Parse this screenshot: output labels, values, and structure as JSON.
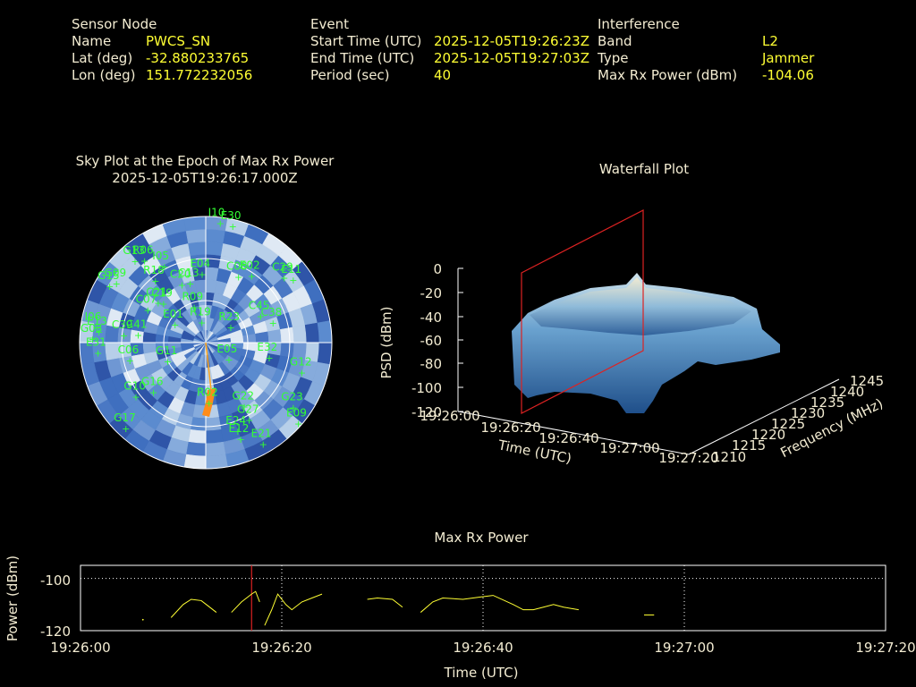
{
  "header": {
    "sensor": {
      "title": "Sensor Node",
      "name_label": "Name",
      "name_value": "PWCS_SN",
      "lat_label": "Lat (deg)",
      "lat_value": "-32.880233765",
      "lon_label": "Lon (deg)",
      "lon_value": "151.772232056"
    },
    "event": {
      "title": "Event",
      "start_label": "Start Time (UTC)",
      "start_value": "2025-12-05T19:26:23Z",
      "end_label": "End Time (UTC)",
      "end_value": "2025-12-05T19:27:03Z",
      "period_label": "Period (sec)",
      "period_value": "40"
    },
    "interference": {
      "title": "Interference",
      "band_label": "Band",
      "band_value": "L2",
      "type_label": "Type",
      "type_value": "Jammer",
      "power_label": "Max Rx Power (dBm)",
      "power_value": "-104.06"
    }
  },
  "sky_plot": {
    "title": "Sky Plot at the Epoch of Max Rx Power",
    "epoch": "2025-12-05T19:26:17.000Z",
    "satellites": [
      {
        "id": "G13",
        "az": -40,
        "el": 10
      },
      {
        "id": "R06",
        "az": -36,
        "el": 14
      },
      {
        "id": "I10",
        "az": 6,
        "el": 1
      },
      {
        "id": "E30",
        "az": 12,
        "el": 2
      },
      {
        "id": "G15",
        "az": -58,
        "el": 8
      },
      {
        "id": "G09",
        "az": -55,
        "el": 11
      },
      {
        "id": "R18",
        "az": -38,
        "el": 30
      },
      {
        "id": "I05",
        "az": -28,
        "el": 25
      },
      {
        "id": "C20",
        "az": -22,
        "el": 42
      },
      {
        "id": "C13",
        "az": -15,
        "el": 43
      },
      {
        "id": "E04",
        "az": -4,
        "el": 38
      },
      {
        "id": "C08",
        "az": 24,
        "el": 35
      },
      {
        "id": "E02",
        "az": 32,
        "el": 30
      },
      {
        "id": "C29",
        "az": 48,
        "el": 16
      },
      {
        "id": "E11",
        "az": 52,
        "el": 12
      },
      {
        "id": "C07",
        "az": -58,
        "el": 40
      },
      {
        "id": "C21",
        "az": -48,
        "el": 43
      },
      {
        "id": "C19",
        "az": -45,
        "el": 46
      },
      {
        "id": "R09",
        "az": -18,
        "el": 60
      },
      {
        "id": "E01",
        "az": -55,
        "el": 62
      },
      {
        "id": "I06",
        "az": -80,
        "el": 10
      },
      {
        "id": "G03",
        "az": -86,
        "el": 8
      },
      {
        "id": "E13",
        "az": -82,
        "el": 12
      },
      {
        "id": "E31",
        "az": -93,
        "el": 12
      },
      {
        "id": "C39",
        "az": -82,
        "el": 30
      },
      {
        "id": "C41",
        "az": -80,
        "el": 40
      },
      {
        "id": "R19",
        "az": -12,
        "el": 72
      },
      {
        "id": "R23",
        "az": 50,
        "el": 68
      },
      {
        "id": "C45",
        "az": 60,
        "el": 46
      },
      {
        "id": "C38",
        "az": 70,
        "el": 40
      },
      {
        "id": "E05",
        "az": 120,
        "el": 72
      },
      {
        "id": "G11",
        "az": -110,
        "el": 60
      },
      {
        "id": "C06",
        "az": -100,
        "el": 34
      },
      {
        "id": "G16",
        "az": -130,
        "el": 40
      },
      {
        "id": "G10",
        "az": -125,
        "el": 28
      },
      {
        "id": "G17",
        "az": -135,
        "el": 8
      },
      {
        "id": "R02",
        "az": 178,
        "el": 50
      },
      {
        "id": "G22",
        "az": 148,
        "el": 40
      },
      {
        "id": "E24",
        "az": 160,
        "el": 26
      },
      {
        "id": "G27",
        "az": 150,
        "el": 30
      },
      {
        "id": "E12",
        "az": 160,
        "el": 20
      },
      {
        "id": "G12",
        "az": 105,
        "el": 20
      },
      {
        "id": "E32",
        "az": 100,
        "el": 45
      },
      {
        "id": "E21",
        "az": 150,
        "el": 10
      },
      {
        "id": "G23",
        "az": 125,
        "el": 15
      },
      {
        "id": "E09",
        "az": 130,
        "el": 5
      }
    ]
  },
  "waterfall": {
    "title": "Waterfall Plot",
    "zlabel": "PSD (dBm)",
    "xlabel": "Time (UTC)",
    "ylabel": "Frequency (MHz)",
    "z_ticks": [
      "0",
      "-20",
      "-40",
      "-60",
      "-80",
      "-100",
      "-120"
    ],
    "t_ticks": [
      "19:26:00",
      "19:26:20",
      "19:26:40",
      "19:27:00",
      "19:27:20"
    ],
    "f_ticks": [
      "1210",
      "1215",
      "1220",
      "1225",
      "1230",
      "1235",
      "1240",
      "1245"
    ]
  },
  "max_rx": {
    "title": "Max Rx Power",
    "ylabel": "Power (dBm)",
    "xlabel": "Time (UTC)",
    "y_ticks": [
      "-100",
      "-120"
    ],
    "x_ticks": [
      "19:26:00",
      "19:26:20",
      "19:26:40",
      "19:27:00",
      "19:27:20"
    ]
  },
  "chart_data": {
    "type": "line",
    "title": "Max Rx Power",
    "xlabel": "Time (UTC)",
    "ylabel": "Power (dBm)",
    "ylim": [
      -120,
      -95
    ],
    "xlim_sec": [
      0,
      80
    ],
    "x_origin": "19:26:00",
    "marker_sec": 17,
    "color": "#ffff33",
    "segments": [
      [
        [
          6.2,
          -115.8
        ]
      ],
      [
        [
          9.0,
          -115
        ],
        [
          10.2,
          -110
        ],
        [
          11.0,
          -108
        ],
        [
          12.0,
          -108.5
        ],
        [
          12.5,
          -110
        ],
        [
          13.5,
          -113
        ]
      ],
      [
        [
          15.0,
          -113
        ],
        [
          16.0,
          -109
        ],
        [
          17.0,
          -106
        ],
        [
          17.4,
          -105
        ],
        [
          17.8,
          -109
        ]
      ],
      [
        [
          18.3,
          -118
        ],
        [
          19.0,
          -112
        ],
        [
          19.6,
          -106
        ],
        [
          20.4,
          -110
        ],
        [
          21.0,
          -112
        ],
        [
          22.0,
          -109
        ],
        [
          23.0,
          -107.5
        ],
        [
          24.0,
          -106
        ]
      ],
      [
        [
          28.5,
          -108
        ],
        [
          29.5,
          -107.5
        ],
        [
          31.0,
          -108
        ],
        [
          32.0,
          -111
        ]
      ],
      [
        [
          33.8,
          -113
        ],
        [
          35.0,
          -109
        ],
        [
          36.0,
          -107.5
        ],
        [
          38.0,
          -108
        ],
        [
          40.0,
          -107
        ],
        [
          41.0,
          -106.5
        ],
        [
          43.0,
          -110
        ],
        [
          44.0,
          -112
        ],
        [
          45.0,
          -112
        ],
        [
          46.0,
          -111
        ],
        [
          47.0,
          -110
        ],
        [
          48.0,
          -111
        ],
        [
          49.5,
          -112
        ]
      ],
      [
        [
          56.0,
          -114
        ],
        [
          57.0,
          -114
        ]
      ]
    ]
  }
}
